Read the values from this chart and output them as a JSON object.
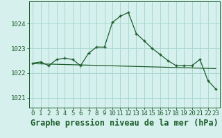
{
  "title": "Graphe pression niveau de la mer (hPa)",
  "background_color": "#d6f0ee",
  "grid_color": "#a8d8d0",
  "line_color": "#1a5c28",
  "xlim": [
    -0.5,
    23.5
  ],
  "ylim": [
    1020.6,
    1024.9
  ],
  "yticks": [
    1021,
    1022,
    1023,
    1024
  ],
  "xticks": [
    0,
    1,
    2,
    3,
    4,
    5,
    6,
    7,
    8,
    9,
    10,
    11,
    12,
    13,
    14,
    15,
    16,
    17,
    18,
    19,
    20,
    21,
    22,
    23
  ],
  "series1_x": [
    0,
    1,
    2,
    3,
    4,
    5,
    6,
    7,
    8,
    9,
    10,
    11,
    12,
    13,
    14,
    15,
    16,
    17,
    18,
    19,
    20,
    21,
    22,
    23
  ],
  "series1_y": [
    1022.4,
    1022.45,
    1022.3,
    1022.55,
    1022.6,
    1022.55,
    1022.3,
    1022.8,
    1023.05,
    1023.05,
    1024.05,
    1024.3,
    1024.45,
    1023.6,
    1023.3,
    1023.0,
    1022.75,
    1022.5,
    1022.3,
    1022.3,
    1022.3,
    1022.55,
    1021.7,
    1021.35
  ],
  "series2_x": [
    0,
    23
  ],
  "series2_y": [
    1022.38,
    1022.18
  ],
  "title_fontsize": 8.5,
  "tick_fontsize": 6.5
}
